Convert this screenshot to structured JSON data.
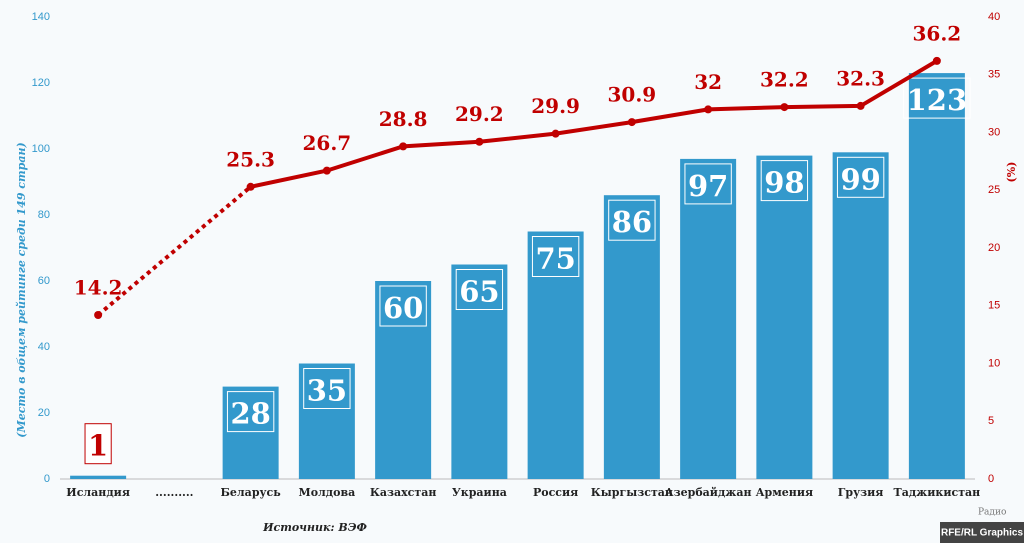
{
  "chart_data": {
    "type": "bar",
    "categories": [
      "Исландия",
      "..........",
      "Беларусь",
      "Молдова",
      "Казахстан",
      "Украина",
      "Россия",
      "Кыргызстан",
      "Азербайджан",
      "Армения",
      "Грузия",
      "Таджикистан"
    ],
    "series": [
      {
        "type": "bar",
        "color": "#3399cc",
        "values": [
          1,
          null,
          28,
          35,
          60,
          65,
          75,
          86,
          97,
          98,
          99,
          123
        ]
      },
      {
        "type": "line",
        "axis": "y2",
        "color": "#c00000",
        "values": [
          14.2,
          null,
          25.3,
          26.7,
          28.8,
          29.2,
          29.9,
          30.9,
          32,
          32.2,
          32.3,
          36.2
        ]
      }
    ],
    "ylim": [
      0,
      140
    ],
    "yticks": [
      0,
      20,
      40,
      60,
      80,
      100,
      120,
      140
    ],
    "y2lim": [
      0,
      40
    ],
    "y2ticks": [
      0,
      5,
      10,
      15,
      20,
      25,
      30,
      35,
      40
    ],
    "ylabel": "(Место в общем рейтинге среди 149 стран)",
    "y2label": "(%)",
    "source": "Источник: ВЭФ",
    "logo": "Радио",
    "credit": "RFE/RL Graphics",
    "grid": false
  }
}
